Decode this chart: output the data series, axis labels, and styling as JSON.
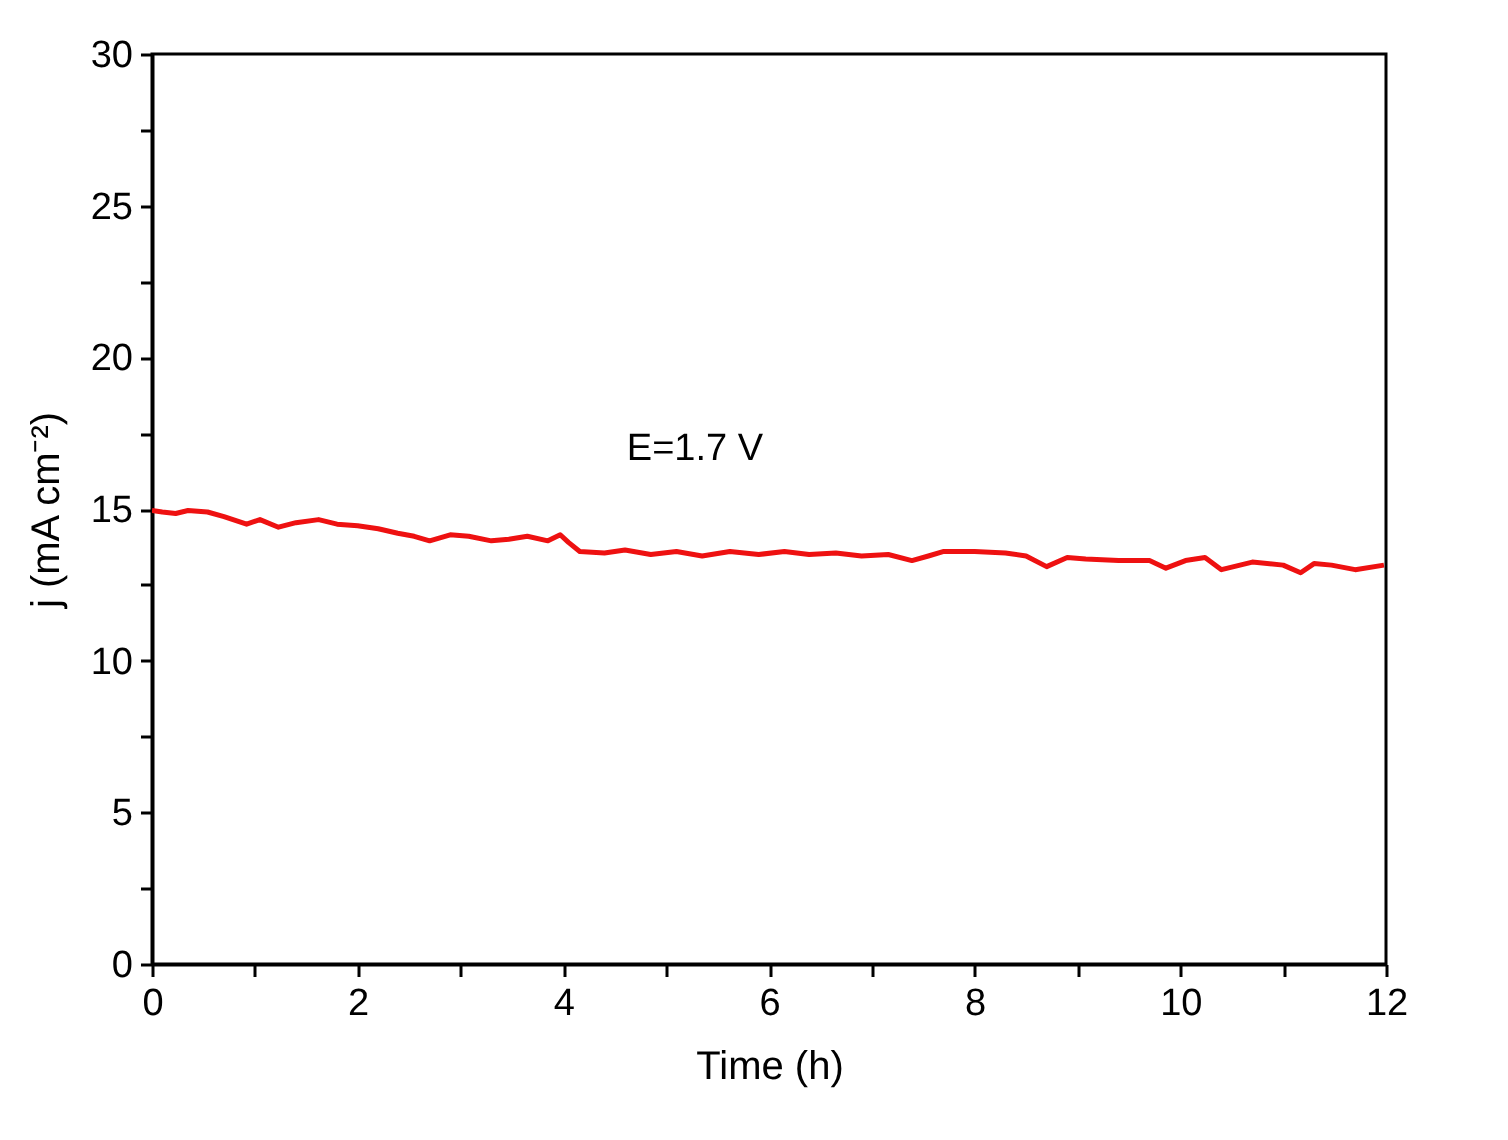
{
  "chart_data": {
    "type": "line",
    "xlabel": "Time (h)",
    "ylabel": "j (mA cm⁻²)",
    "annotations": [
      "E=1.7 V"
    ],
    "x": [
      0,
      0.1,
      0.23,
      0.35,
      0.54,
      0.7,
      0.92,
      1.05,
      1.23,
      1.4,
      1.62,
      1.8,
      2.0,
      2.2,
      2.39,
      2.55,
      2.7,
      2.9,
      3.08,
      3.3,
      3.47,
      3.65,
      3.85,
      3.97,
      4.05,
      4.16,
      4.4,
      4.6,
      4.85,
      5.1,
      5.35,
      5.62,
      5.9,
      6.15,
      6.39,
      6.65,
      6.9,
      7.16,
      7.39,
      7.55,
      7.7,
      8.0,
      8.3,
      8.5,
      8.7,
      8.9,
      9.08,
      9.4,
      9.7,
      9.86,
      10.05,
      10.24,
      10.4,
      10.7,
      11.0,
      11.17,
      11.3,
      11.47,
      11.7,
      11.98
    ],
    "series": [
      {
        "color": "#ee1111",
        "values": [
          14.95,
          14.9,
          14.85,
          14.95,
          14.9,
          14.75,
          14.5,
          14.65,
          14.4,
          14.55,
          14.65,
          14.5,
          14.45,
          14.35,
          14.2,
          14.1,
          13.95,
          14.15,
          14.1,
          13.95,
          14.0,
          14.1,
          13.95,
          14.15,
          13.9,
          13.6,
          13.55,
          13.65,
          13.5,
          13.6,
          13.45,
          13.6,
          13.5,
          13.6,
          13.5,
          13.55,
          13.45,
          13.5,
          13.3,
          13.45,
          13.6,
          13.6,
          13.55,
          13.45,
          13.1,
          13.4,
          13.35,
          13.3,
          13.3,
          13.05,
          13.3,
          13.4,
          13.0,
          13.25,
          13.15,
          12.9,
          13.2,
          13.15,
          13.0,
          13.15
        ]
      }
    ],
    "xlim": [
      0,
      12
    ],
    "xticks": [
      0,
      {
        "value": 1,
        "label": null
      },
      2,
      {
        "value": 3,
        "label": null
      },
      4,
      {
        "value": 5,
        "label": null
      },
      6,
      {
        "value": 7,
        "label": null
      },
      8,
      {
        "value": 9,
        "label": null
      },
      10,
      {
        "value": 11,
        "label": null
      },
      12
    ],
    "ylim": [
      0,
      30
    ],
    "yticks": [
      0,
      {
        "value": 2.5,
        "label": null
      },
      5,
      {
        "value": 7.5,
        "label": null
      },
      10,
      {
        "value": 12.5,
        "label": null
      },
      15,
      {
        "value": 17.5,
        "label": null
      },
      20,
      {
        "value": 22.5,
        "label": null
      },
      25,
      {
        "value": 27.5,
        "label": null
      },
      30
    ],
    "grid": false,
    "line_style": "solid",
    "marker": "none"
  }
}
